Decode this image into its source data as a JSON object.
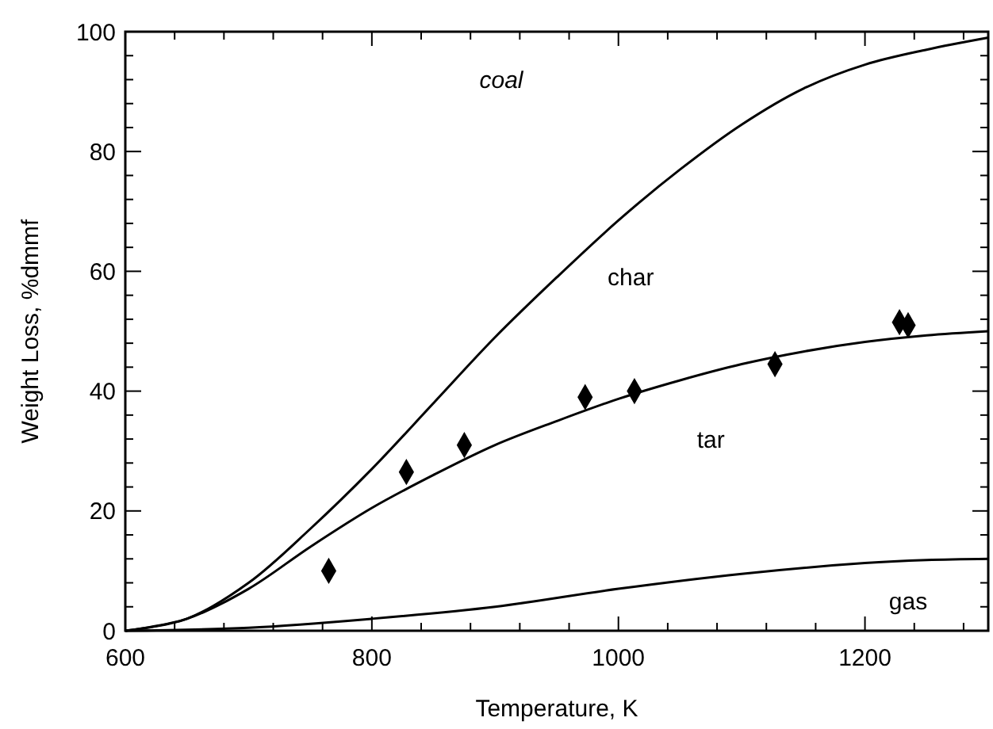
{
  "chart_data": {
    "type": "line",
    "xlabel": "Temperature, K",
    "ylabel": "Weight Loss, %dmmf",
    "xlim": [
      600,
      1300
    ],
    "ylim": [
      0,
      100
    ],
    "xticks": [
      600,
      {
        "value": 640,
        "label": null
      },
      {
        "value": 680,
        "label": null
      },
      {
        "value": 720,
        "label": null
      },
      {
        "value": 760,
        "label": null
      },
      800,
      {
        "value": 840,
        "label": null
      },
      {
        "value": 880,
        "label": null
      },
      {
        "value": 920,
        "label": null
      },
      {
        "value": 960,
        "label": null
      },
      1000,
      {
        "value": 1040,
        "label": null
      },
      {
        "value": 1080,
        "label": null
      },
      {
        "value": 1120,
        "label": null
      },
      {
        "value": 1160,
        "label": null
      },
      1200,
      {
        "value": 1240,
        "label": null
      },
      {
        "value": 1280,
        "label": null
      }
    ],
    "yticks": [
      0,
      {
        "value": 4,
        "label": null
      },
      {
        "value": 8,
        "label": null
      },
      {
        "value": 12,
        "label": null
      },
      {
        "value": 16,
        "label": null
      },
      20,
      {
        "value": 24,
        "label": null
      },
      {
        "value": 28,
        "label": null
      },
      {
        "value": 32,
        "label": null
      },
      {
        "value": 36,
        "label": null
      },
      40,
      {
        "value": 44,
        "label": null
      },
      {
        "value": 48,
        "label": null
      },
      {
        "value": 52,
        "label": null
      },
      {
        "value": 56,
        "label": null
      },
      60,
      {
        "value": 64,
        "label": null
      },
      {
        "value": 68,
        "label": null
      },
      {
        "value": 72,
        "label": null
      },
      {
        "value": 76,
        "label": null
      },
      80,
      {
        "value": 84,
        "label": null
      },
      {
        "value": 88,
        "label": null
      },
      {
        "value": 92,
        "label": null
      },
      {
        "value": 96,
        "label": null
      },
      100
    ],
    "grid": false,
    "series": [
      {
        "color": "#000000",
        "x": [
          600,
          650,
          700,
          750,
          800,
          850,
          900,
          950,
          1000,
          1050,
          1100,
          1150,
          1200,
          1250,
          1300
        ],
        "values": [
          0,
          2,
          8,
          17,
          27,
          38,
          49,
          59,
          68.5,
          77,
          84.5,
          90.5,
          94.5,
          97,
          99
        ]
      },
      {
        "color": "#000000",
        "x": [
          600,
          650,
          700,
          750,
          800,
          850,
          900,
          950,
          1000,
          1050,
          1100,
          1150,
          1200,
          1250,
          1300
        ],
        "values": [
          0,
          2,
          7,
          14,
          20.5,
          26,
          31,
          35,
          38.7,
          41.8,
          44.5,
          46.6,
          48.2,
          49.3,
          50
        ]
      },
      {
        "color": "#000000",
        "x": [
          600,
          700,
          800,
          900,
          1000,
          1100,
          1200,
          1250,
          1300
        ],
        "values": [
          0,
          0.5,
          2,
          4,
          7,
          9.5,
          11.3,
          11.8,
          12
        ]
      },
      {
        "type": "scatter",
        "color": "#000000",
        "marker": "diamond",
        "x": [
          765,
          828,
          875,
          973,
          1013,
          1127,
          1228,
          1235
        ],
        "values": [
          10,
          26.5,
          31,
          39,
          40,
          44.5,
          51.5,
          51
        ]
      }
    ],
    "annotations": [
      "coal",
      "char",
      "tar",
      "gas"
    ]
  }
}
